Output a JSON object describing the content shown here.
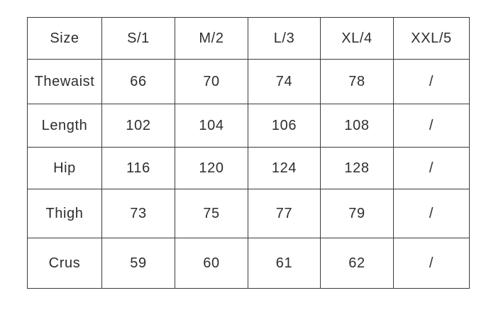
{
  "chart_data": {
    "type": "table",
    "columns": [
      "Size",
      "S/1",
      "M/2",
      "L/3",
      "XL/4",
      "XXL/5"
    ],
    "rows": [
      {
        "label": "Thewaist",
        "values": [
          "66",
          "70",
          "74",
          "78",
          "/"
        ]
      },
      {
        "label": "Length",
        "values": [
          "102",
          "104",
          "106",
          "108",
          "/"
        ]
      },
      {
        "label": "Hip",
        "values": [
          "116",
          "120",
          "124",
          "128",
          "/"
        ]
      },
      {
        "label": "Thigh",
        "values": [
          "73",
          "75",
          "77",
          "79",
          "/"
        ]
      },
      {
        "label": "Crus",
        "values": [
          "59",
          "60",
          "61",
          "62",
          "/"
        ]
      }
    ],
    "colors": {
      "background": "#ffffff",
      "text": "#2e2e2e",
      "border": "#3b3b3b"
    }
  }
}
